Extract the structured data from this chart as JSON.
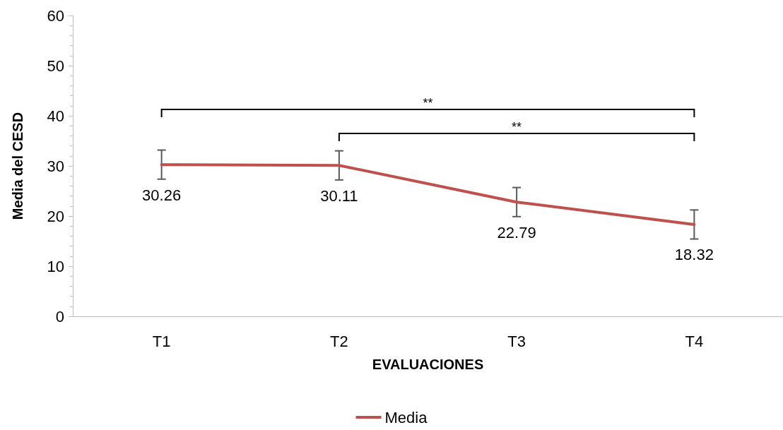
{
  "chart_data": {
    "type": "line",
    "xlabel": "EVALUACIONES",
    "ylabel": "Media del CESD",
    "categories": [
      "T1",
      "T2",
      "T3",
      "T4"
    ],
    "series": [
      {
        "name": "Media",
        "color": "#c0504d",
        "values": [
          30.26,
          30.11,
          22.79,
          18.32
        ],
        "errors": [
          2.9,
          2.9,
          2.9,
          2.9
        ]
      }
    ],
    "ylim": [
      0,
      60
    ],
    "yticks": [
      0,
      10,
      20,
      30,
      40,
      50,
      60
    ],
    "data_labels": true,
    "legend": "bottom",
    "marker": "none",
    "line_style": "solid",
    "grid": false,
    "annotations": [
      "**",
      "**"
    ]
  }
}
